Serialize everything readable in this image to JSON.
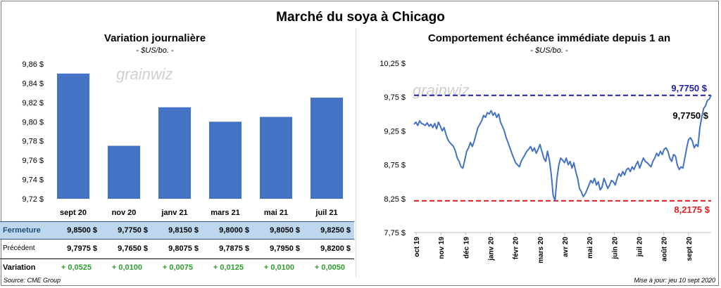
{
  "main_title": "Marché du soya à Chicago",
  "left_chart": {
    "title": "Variation  journalière",
    "subtitle": "- $US/bo. -",
    "watermark": "grainwiz"
  },
  "right_chart": {
    "title": "Comportement  échéance immédiate depuis 1 an",
    "subtitle": "- $US/bo. -",
    "watermark": "grainwiz",
    "label_top_line": "9,7750 $",
    "label_last_value": "9,7750 $",
    "label_low_line": "8,2175 $"
  },
  "table": {
    "fermeture_label": "Fermeture",
    "precedent_label": "Précédent",
    "variation_label": "Variation",
    "fermeture": [
      "9,8500  $",
      "9,7750  $",
      "9,8150  $",
      "9,8000  $",
      "9,8050  $",
      "9,8250  $"
    ],
    "precedent": [
      "9,7975  $",
      "9,7650  $",
      "9,8075  $",
      "9,7875  $",
      "9,7950  $",
      "9,8200  $"
    ],
    "variation": [
      "+ 0,0525",
      "+ 0,0100",
      "+ 0,0075",
      "+ 0,0125",
      "+ 0,0100",
      "+ 0,0050"
    ]
  },
  "footer": {
    "source": "Source: CME Group",
    "updated": "Mise à jour: jeu 10 sept 2020"
  },
  "chart_data": [
    {
      "type": "bar",
      "title": "Variation  journalière",
      "subtitle": "- $US/bo. -",
      "categories": [
        "sept 20",
        "nov 20",
        "janv 21",
        "mars 21",
        "mai 21",
        "juil 21"
      ],
      "values": [
        9.85,
        9.775,
        9.815,
        9.8,
        9.805,
        9.825
      ],
      "ylim": [
        9.72,
        9.86
      ],
      "yticks": [
        "9,72 $",
        "9,74 $",
        "9,76 $",
        "9,78 $",
        "9,80 $",
        "9,82 $",
        "9,84 $",
        "9,86 $"
      ],
      "grid": false,
      "color": "#4472c4"
    },
    {
      "type": "line",
      "title": "Comportement  échéance immédiate depuis 1 an",
      "subtitle": "- $US/bo. -",
      "x_tick_labels": [
        "oct 19",
        "nov 19",
        "déc 19",
        "janv 20",
        "févr 20",
        "mars 20",
        "avr 20",
        "mai 20",
        "juin 20",
        "juil 20",
        "août 20",
        "sept 20"
      ],
      "ylim": [
        7.75,
        10.25
      ],
      "yticks": [
        "7,75 $",
        "8,25 $",
        "8,75 $",
        "9,25 $",
        "9,75 $",
        "10,25 $"
      ],
      "grid": false,
      "color": "#4472c4",
      "reference_lines": [
        {
          "value": 9.775,
          "color": "#1f1fa8",
          "style": "dashed"
        },
        {
          "value": 8.2175,
          "color": "#e02020",
          "style": "dashed"
        }
      ],
      "series_values": [
        9.35,
        9.38,
        9.33,
        9.4,
        9.36,
        9.35,
        9.33,
        9.37,
        9.32,
        9.35,
        9.3,
        9.36,
        9.28,
        9.38,
        9.32,
        9.25,
        9.3,
        9.2,
        9.12,
        9.08,
        9.05,
        9.02,
        8.95,
        8.85,
        8.8,
        8.72,
        8.7,
        8.82,
        8.95,
        9.0,
        9.08,
        9.02,
        9.1,
        9.2,
        9.3,
        9.35,
        9.4,
        9.48,
        9.45,
        9.52,
        9.5,
        9.55,
        9.48,
        9.52,
        9.45,
        9.5,
        9.38,
        9.32,
        9.25,
        9.15,
        9.08,
        9.0,
        8.92,
        8.85,
        8.78,
        8.75,
        8.72,
        8.8,
        8.85,
        8.9,
        8.95,
        8.98,
        9.02,
        8.95,
        9.0,
        8.92,
        8.98,
        9.05,
        8.95,
        8.85,
        8.8,
        8.95,
        8.82,
        8.6,
        8.3,
        8.22,
        8.55,
        8.75,
        8.85,
        8.82,
        8.78,
        8.85,
        8.75,
        8.8,
        8.7,
        8.78,
        8.65,
        8.55,
        8.4,
        8.35,
        8.28,
        8.32,
        8.38,
        8.45,
        8.52,
        8.48,
        8.55,
        8.45,
        8.5,
        8.38,
        8.42,
        8.55,
        8.48,
        8.4,
        8.45,
        8.52,
        8.5,
        8.45,
        8.55,
        8.62,
        8.58,
        8.65,
        8.6,
        8.68,
        8.7,
        8.65,
        8.72,
        8.68,
        8.75,
        8.8,
        8.7,
        8.78,
        8.85,
        8.8,
        8.78,
        8.75,
        8.72,
        8.8,
        8.85,
        8.92,
        8.88,
        8.95,
        8.9,
        8.98,
        9.0,
        8.95,
        8.85,
        8.8,
        8.9,
        8.88,
        8.75,
        8.68,
        8.72,
        8.7,
        8.85,
        9.0,
        9.12,
        9.15,
        9.1,
        9.0,
        9.05,
        9.02,
        9.3,
        9.45,
        9.58,
        9.62,
        9.7,
        9.72,
        9.775
      ]
    }
  ]
}
